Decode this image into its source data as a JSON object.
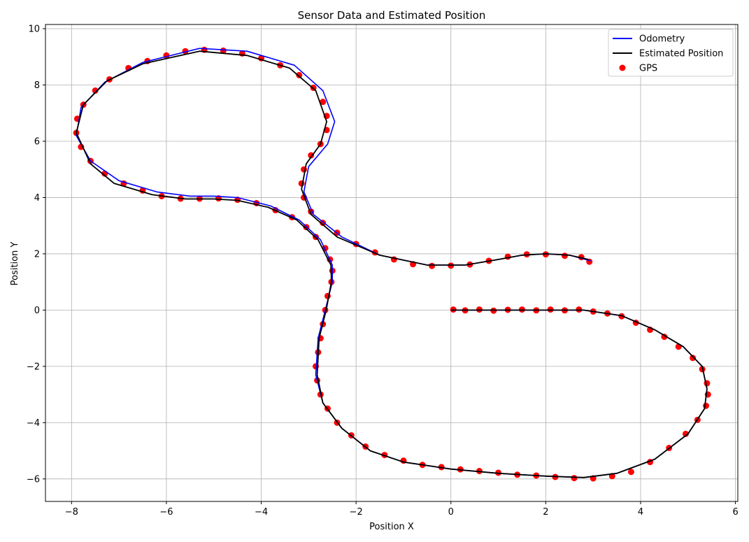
{
  "chart_data": {
    "type": "line",
    "title": "Sensor Data and Estimated Position",
    "xlabel": "Position X",
    "ylabel": "Position Y",
    "xlim": [
      -8.55,
      6.05
    ],
    "ylim": [
      -6.8,
      10.15
    ],
    "xticks": [
      -8,
      -6,
      -4,
      -2,
      0,
      2,
      4,
      6
    ],
    "yticks": [
      -6,
      -4,
      -2,
      0,
      2,
      4,
      6,
      8,
      10
    ],
    "grid": true,
    "legend_position": "top-right",
    "colors": {
      "odometry": "#0000ff",
      "estimated": "#000000",
      "gps": "#ff0000"
    },
    "series": [
      {
        "name": "Odometry",
        "kind": "line",
        "points": [
          [
            0,
            0
          ],
          [
            1,
            0
          ],
          [
            2,
            0
          ],
          [
            2.8,
            0
          ],
          [
            3.6,
            -0.2
          ],
          [
            4.3,
            -0.7
          ],
          [
            4.9,
            -1.3
          ],
          [
            5.3,
            -2
          ],
          [
            5.4,
            -2.8
          ],
          [
            5.35,
            -3.5
          ],
          [
            5,
            -4.4
          ],
          [
            4.3,
            -5.3
          ],
          [
            3.5,
            -5.8
          ],
          [
            2.8,
            -5.95
          ],
          [
            2,
            -5.9
          ],
          [
            1,
            -5.8
          ],
          [
            0,
            -5.65
          ],
          [
            -1,
            -5.4
          ],
          [
            -1.7,
            -5
          ],
          [
            -2.3,
            -4.2
          ],
          [
            -2.7,
            -3.3
          ],
          [
            -2.85,
            -2.3
          ],
          [
            -2.8,
            -1
          ],
          [
            -2.65,
            0
          ],
          [
            -2.5,
            1
          ],
          [
            -2.5,
            1.6
          ],
          [
            -2.75,
            2.5
          ],
          [
            -3.2,
            3.2
          ],
          [
            -3.8,
            3.7
          ],
          [
            -4.5,
            4
          ],
          [
            -5,
            4.05
          ],
          [
            -5.5,
            4.05
          ],
          [
            -6.2,
            4.2
          ],
          [
            -7,
            4.6
          ],
          [
            -7.6,
            5.3
          ],
          [
            -7.9,
            6.2
          ],
          [
            -7.8,
            7.2
          ],
          [
            -7.3,
            8.1
          ],
          [
            -6.5,
            8.8
          ],
          [
            -5.3,
            9.3
          ],
          [
            -4.3,
            9.2
          ],
          [
            -3.3,
            8.7
          ],
          [
            -2.7,
            7.8
          ],
          [
            -2.45,
            6.7
          ],
          [
            -2.6,
            5.9
          ],
          [
            -3,
            5.1
          ],
          [
            -3.1,
            4.2
          ],
          [
            -2.9,
            3.4
          ],
          [
            -2.3,
            2.6
          ],
          [
            -1.5,
            1.95
          ],
          [
            -0.5,
            1.6
          ],
          [
            0.3,
            1.6
          ],
          [
            1,
            1.8
          ],
          [
            1.5,
            1.95
          ],
          [
            2,
            2
          ],
          [
            2.5,
            1.95
          ],
          [
            2.95,
            1.75
          ]
        ]
      },
      {
        "name": "Estimated Position",
        "kind": "line",
        "points": [
          [
            0,
            0
          ],
          [
            1,
            0
          ],
          [
            2,
            0
          ],
          [
            2.8,
            0
          ],
          [
            3.6,
            -0.2
          ],
          [
            4.3,
            -0.7
          ],
          [
            4.9,
            -1.3
          ],
          [
            5.3,
            -2
          ],
          [
            5.4,
            -2.8
          ],
          [
            5.35,
            -3.5
          ],
          [
            5,
            -4.4
          ],
          [
            4.3,
            -5.3
          ],
          [
            3.5,
            -5.8
          ],
          [
            2.8,
            -5.95
          ],
          [
            2,
            -5.9
          ],
          [
            1,
            -5.8
          ],
          [
            0,
            -5.65
          ],
          [
            -1,
            -5.4
          ],
          [
            -1.7,
            -5
          ],
          [
            -2.3,
            -4.2
          ],
          [
            -2.7,
            -3.3
          ],
          [
            -2.82,
            -2.3
          ],
          [
            -2.78,
            -1
          ],
          [
            -2.63,
            0
          ],
          [
            -2.52,
            1
          ],
          [
            -2.53,
            1.6
          ],
          [
            -2.8,
            2.5
          ],
          [
            -3.25,
            3.2
          ],
          [
            -3.85,
            3.65
          ],
          [
            -4.5,
            3.9
          ],
          [
            -5,
            3.95
          ],
          [
            -5.6,
            3.95
          ],
          [
            -6.3,
            4.1
          ],
          [
            -7.1,
            4.5
          ],
          [
            -7.6,
            5.2
          ],
          [
            -7.9,
            6.3
          ],
          [
            -7.75,
            7.3
          ],
          [
            -7.25,
            8.15
          ],
          [
            -6.5,
            8.75
          ],
          [
            -5.3,
            9.2
          ],
          [
            -4.3,
            9.05
          ],
          [
            -3.4,
            8.6
          ],
          [
            -2.85,
            7.8
          ],
          [
            -2.62,
            6.7
          ],
          [
            -2.75,
            5.9
          ],
          [
            -3.05,
            5.2
          ],
          [
            -3.15,
            4.3
          ],
          [
            -2.95,
            3.4
          ],
          [
            -2.4,
            2.6
          ],
          [
            -1.5,
            1.95
          ],
          [
            -0.5,
            1.6
          ],
          [
            0.3,
            1.6
          ],
          [
            1,
            1.8
          ],
          [
            1.5,
            1.95
          ],
          [
            2,
            2
          ],
          [
            2.5,
            1.95
          ],
          [
            2.9,
            1.8
          ]
        ]
      },
      {
        "name": "GPS",
        "kind": "scatter",
        "points": [
          [
            0.05,
            0.02
          ],
          [
            0.3,
            -0.01
          ],
          [
            0.6,
            0.02
          ],
          [
            0.9,
            -0.02
          ],
          [
            1.2,
            0.01
          ],
          [
            1.5,
            0.02
          ],
          [
            1.8,
            -0.01
          ],
          [
            2.1,
            0.02
          ],
          [
            2.4,
            -0.01
          ],
          [
            2.7,
            0.02
          ],
          [
            3,
            -0.05
          ],
          [
            3.3,
            -0.12
          ],
          [
            3.6,
            -0.22
          ],
          [
            3.9,
            -0.45
          ],
          [
            4.2,
            -0.7
          ],
          [
            4.5,
            -0.95
          ],
          [
            4.8,
            -1.3
          ],
          [
            5.1,
            -1.7
          ],
          [
            5.3,
            -2.1
          ],
          [
            5.4,
            -2.6
          ],
          [
            5.42,
            -3
          ],
          [
            5.38,
            -3.4
          ],
          [
            5.2,
            -3.9
          ],
          [
            4.95,
            -4.4
          ],
          [
            4.6,
            -4.9
          ],
          [
            4.2,
            -5.4
          ],
          [
            3.8,
            -5.75
          ],
          [
            3.4,
            -5.9
          ],
          [
            3,
            -5.98
          ],
          [
            2.6,
            -5.97
          ],
          [
            2.2,
            -5.93
          ],
          [
            1.8,
            -5.88
          ],
          [
            1.4,
            -5.85
          ],
          [
            1,
            -5.78
          ],
          [
            0.6,
            -5.72
          ],
          [
            0.2,
            -5.66
          ],
          [
            -0.2,
            -5.58
          ],
          [
            -0.6,
            -5.5
          ],
          [
            -1,
            -5.35
          ],
          [
            -1.4,
            -5.15
          ],
          [
            -1.8,
            -4.85
          ],
          [
            -2.1,
            -4.45
          ],
          [
            -2.4,
            -4
          ],
          [
            -2.6,
            -3.5
          ],
          [
            -2.75,
            -3
          ],
          [
            -2.82,
            -2.5
          ],
          [
            -2.85,
            -2
          ],
          [
            -2.8,
            -1.5
          ],
          [
            -2.75,
            -1
          ],
          [
            -2.7,
            -0.5
          ],
          [
            -2.65,
            0
          ],
          [
            -2.6,
            0.5
          ],
          [
            -2.52,
            1
          ],
          [
            -2.5,
            1.4
          ],
          [
            -2.55,
            1.8
          ],
          [
            -2.65,
            2.2
          ],
          [
            -2.85,
            2.6
          ],
          [
            -3.05,
            2.95
          ],
          [
            -3.35,
            3.3
          ],
          [
            -3.7,
            3.55
          ],
          [
            -4.1,
            3.8
          ],
          [
            -4.5,
            3.92
          ],
          [
            -4.9,
            3.97
          ],
          [
            -5.3,
            3.96
          ],
          [
            -5.7,
            3.96
          ],
          [
            -6.1,
            4.05
          ],
          [
            -6.5,
            4.25
          ],
          [
            -6.9,
            4.5
          ],
          [
            -7.3,
            4.85
          ],
          [
            -7.6,
            5.3
          ],
          [
            -7.8,
            5.8
          ],
          [
            -7.9,
            6.3
          ],
          [
            -7.88,
            6.8
          ],
          [
            -7.75,
            7.3
          ],
          [
            -7.5,
            7.8
          ],
          [
            -7.2,
            8.2
          ],
          [
            -6.8,
            8.6
          ],
          [
            -6.4,
            8.85
          ],
          [
            -6,
            9.05
          ],
          [
            -5.6,
            9.2
          ],
          [
            -5.2,
            9.25
          ],
          [
            -4.8,
            9.22
          ],
          [
            -4.4,
            9.12
          ],
          [
            -4,
            8.95
          ],
          [
            -3.6,
            8.7
          ],
          [
            -3.2,
            8.35
          ],
          [
            -2.9,
            7.9
          ],
          [
            -2.7,
            7.4
          ],
          [
            -2.62,
            6.9
          ],
          [
            -2.62,
            6.4
          ],
          [
            -2.75,
            5.9
          ],
          [
            -2.95,
            5.5
          ],
          [
            -3.1,
            5
          ],
          [
            -3.15,
            4.5
          ],
          [
            -3.1,
            4
          ],
          [
            -2.95,
            3.5
          ],
          [
            -2.7,
            3.1
          ],
          [
            -2.4,
            2.75
          ],
          [
            -2,
            2.35
          ],
          [
            -1.6,
            2.05
          ],
          [
            -1.2,
            1.8
          ],
          [
            -0.8,
            1.63
          ],
          [
            -0.4,
            1.57
          ],
          [
            0,
            1.58
          ],
          [
            0.4,
            1.62
          ],
          [
            0.8,
            1.75
          ],
          [
            1.2,
            1.9
          ],
          [
            1.6,
            1.98
          ],
          [
            2,
            1.98
          ],
          [
            2.4,
            1.93
          ],
          [
            2.75,
            1.88
          ],
          [
            2.92,
            1.72
          ]
        ]
      }
    ]
  }
}
